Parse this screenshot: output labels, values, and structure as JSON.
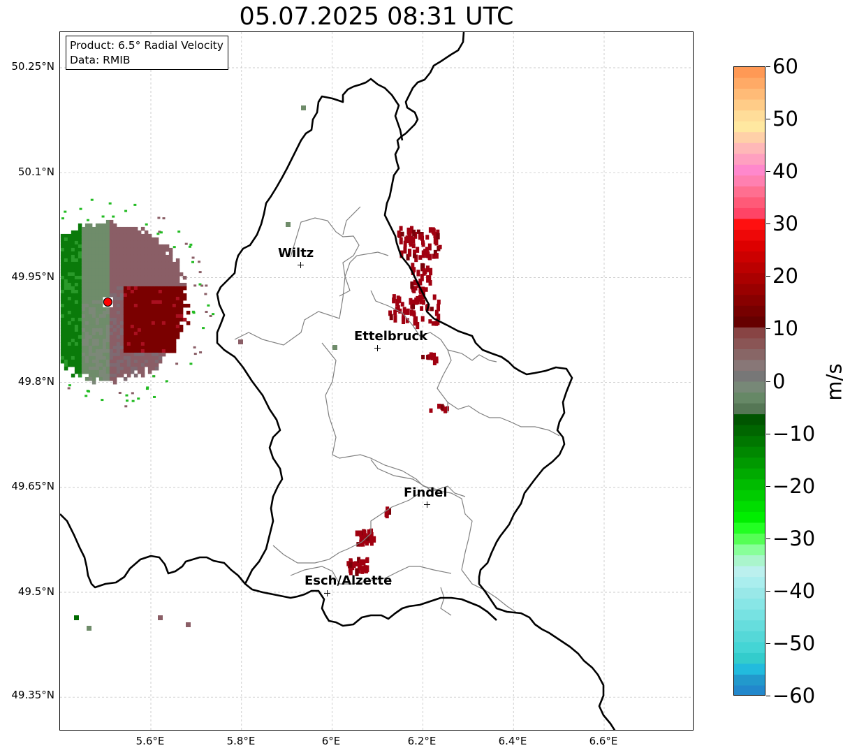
{
  "title": "05.07.2025 08:31 UTC",
  "info_box": {
    "product": "Product: 6.5° Radial Velocity",
    "data_source": "Data: RMIB"
  },
  "axes": {
    "lat_labels": [
      "50.25°N",
      "50.1°N",
      "49.95°N",
      "49.8°N",
      "49.65°N",
      "49.5°N",
      "49.35°N"
    ],
    "lon_labels": [
      "5.6°E",
      "5.8°E",
      "6°E",
      "6.2°E",
      "6.4°E",
      "6.6°E"
    ],
    "grid": "on"
  },
  "cities": [
    {
      "name": "Wiltz",
      "lon": 5.93,
      "lat": 49.968
    },
    {
      "name": "Ettelbruck",
      "lon": 6.1,
      "lat": 49.848
    },
    {
      "name": "Findel",
      "lon": 6.21,
      "lat": 49.627
    },
    {
      "name": "Esch/Alzette",
      "lon": 5.99,
      "lat": 49.499
    }
  ],
  "radar_site": {
    "name": "radar-site",
    "lon": 5.505,
    "lat": 49.915,
    "color": "#ff0000"
  },
  "colorbar": {
    "unit": "m/s",
    "min": -60,
    "max": 60,
    "tick_labels": [
      "60",
      "50",
      "40",
      "30",
      "20",
      "10",
      "0",
      "−10",
      "−20",
      "−30",
      "−40",
      "−50",
      "−60"
    ],
    "colors_top_to_bottom": [
      "#ff9955",
      "#ffaa66",
      "#ffbb77",
      "#ffcc88",
      "#ffdd99",
      "#ffe8a0",
      "#ffd0a8",
      "#ffb8b8",
      "#ffa0c0",
      "#ff88cc",
      "#ff80b0",
      "#ff6f90",
      "#ff5a78",
      "#ff4466",
      "#ff1010",
      "#ee0808",
      "#dd0000",
      "#cc0000",
      "#bb0000",
      "#aa0000",
      "#990000",
      "#880000",
      "#770000",
      "#660000",
      "#884444",
      "#8a5555",
      "#886666",
      "#887777",
      "#777777",
      "#778877",
      "#668866",
      "#557755",
      "#005500",
      "#006600",
      "#007700",
      "#008800",
      "#009900",
      "#00aa00",
      "#00bb00",
      "#00cc00",
      "#00dd00",
      "#00ee00",
      "#22ff22",
      "#55ff55",
      "#88ff99",
      "#aaf5cc",
      "#bbf0ee",
      "#aaeeee",
      "#99e8e8",
      "#88e6e6",
      "#77e2e2",
      "#66dddd",
      "#55d8d8",
      "#44d5d5",
      "#33cccc",
      "#22bbdd",
      "#2299cc",
      "#2288cc"
    ]
  },
  "style_colors": {
    "country_border": "#000000",
    "canton_border": "#808080",
    "grid": "#bbbbbb",
    "outbound_red": "#a00010",
    "inbound_green": "#006a00",
    "mixed_gray_green": "#6f8c6a",
    "mixed_gray_red": "#8a5e66"
  }
}
